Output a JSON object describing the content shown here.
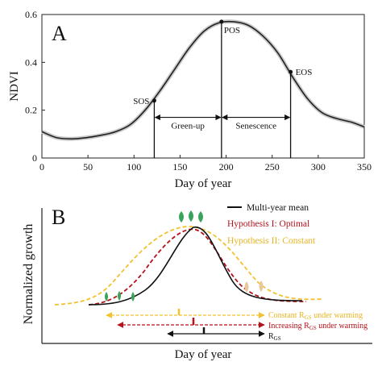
{
  "chart_data": [
    {
      "panel": "A",
      "type": "line",
      "xlabel": "Day of year",
      "ylabel": "NDVI",
      "xlim": [
        0,
        350
      ],
      "ylim": [
        0,
        0.6
      ],
      "xticks": [
        "0",
        "50",
        "100",
        "150",
        "200",
        "250",
        "300",
        "350"
      ],
      "yticks": [
        "0",
        "0.2",
        "0.4",
        "0.6"
      ],
      "grid": false,
      "series": [
        {
          "x": [
            0,
            16,
            32,
            48,
            64,
            80,
            96,
            112,
            128,
            144,
            160,
            176,
            192,
            208,
            224,
            240,
            256,
            272,
            288,
            304,
            320,
            336,
            352
          ],
          "y": [
            0.11,
            0.085,
            0.08,
            0.085,
            0.095,
            0.11,
            0.14,
            0.2,
            0.28,
            0.37,
            0.46,
            0.53,
            0.565,
            0.57,
            0.555,
            0.51,
            0.44,
            0.34,
            0.25,
            0.19,
            0.165,
            0.15,
            0.13
          ]
        }
      ],
      "points": [
        {
          "label": "SOS",
          "x": 122,
          "y": 0.24
        },
        {
          "label": "POS",
          "x": 195,
          "y": 0.57
        },
        {
          "label": "EOS",
          "x": 270,
          "y": 0.36
        }
      ],
      "intervals": [
        {
          "label": "Green-up",
          "from": 122,
          "to": 195,
          "y": 0.17
        },
        {
          "label": "Senescence",
          "from": 195,
          "to": 270,
          "y": 0.17
        }
      ]
    },
    {
      "panel": "B",
      "type": "line",
      "xlabel": "Day of year",
      "ylabel": "Normalized growth",
      "series": [
        {
          "name": "Multi-year mean",
          "color": "#111111",
          "style": "solid"
        },
        {
          "name": "Hypothesis I: Optimal",
          "color": "#b5121b",
          "style": "dashed"
        },
        {
          "name": "Hypothesis II: Constant",
          "color": "#f2c12e",
          "style": "dashed"
        }
      ],
      "legend": "top-right",
      "annotations": [
        {
          "text": "Constant R",
          "sub": "GS",
          "tail": " under warming",
          "color": "#f2c12e"
        },
        {
          "text": "Increasing R",
          "sub": "GS",
          "tail": " under warming",
          "color": "#b5121b"
        },
        {
          "text": "R",
          "sub": "GS",
          "tail": "",
          "color": "#111111"
        }
      ]
    }
  ]
}
